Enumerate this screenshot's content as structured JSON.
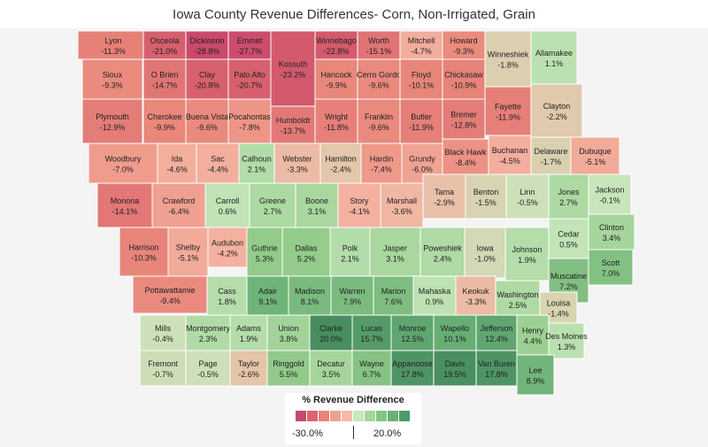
{
  "title": "Iowa County Revenue Differences- Corn, Non-Irrigated, Grain",
  "legend": {
    "title": "% Revenue Difference",
    "min_label": "-30.0%",
    "max_label": "20.0%",
    "swatch_colors": [
      "#c8496b",
      "#d8656f",
      "#e6847a",
      "#f0a08e",
      "#f5bba7",
      "#c9e6bd",
      "#a5d69a",
      "#84c582",
      "#68b176",
      "#4c9a67"
    ]
  },
  "counties": [
    {
      "name": "Lyon",
      "value": "-11.3%"
    },
    {
      "name": "Osceola",
      "value": "-21.0%"
    },
    {
      "name": "Dickinson",
      "value": "-28.8%"
    },
    {
      "name": "Emmet",
      "value": "-27.7%"
    },
    {
      "name": "Kossuth",
      "value": "-23.2%"
    },
    {
      "name": "Winnebago",
      "value": "-22.8%"
    },
    {
      "name": "Worth",
      "value": "-15.1%"
    },
    {
      "name": "Mitchell",
      "value": "-4.7%"
    },
    {
      "name": "Howard",
      "value": "-9.3%"
    },
    {
      "name": "Winneshiek",
      "value": "-1.8%"
    },
    {
      "name": "Allamakee",
      "value": "1.1%"
    },
    {
      "name": "Sioux",
      "value": "-9.3%"
    },
    {
      "name": "O Brien",
      "value": "-14.7%"
    },
    {
      "name": "Clay",
      "value": "-20.8%"
    },
    {
      "name": "Palo Alto",
      "value": "-20.7%"
    },
    {
      "name": "Hancock",
      "value": "-9.9%"
    },
    {
      "name": "Cerro Gordo",
      "value": "-9.6%"
    },
    {
      "name": "Floyd",
      "value": "-10.1%"
    },
    {
      "name": "Chickasaw",
      "value": "-10.9%"
    },
    {
      "name": "Fayette",
      "value": "-11.9%"
    },
    {
      "name": "Clayton",
      "value": "-2.2%"
    },
    {
      "name": "Plymouth",
      "value": "-12.9%"
    },
    {
      "name": "Cherokee",
      "value": "-9.9%"
    },
    {
      "name": "Buena Vista",
      "value": "-9.6%"
    },
    {
      "name": "Pocahontas",
      "value": "-7.8%"
    },
    {
      "name": "Humboldt",
      "value": "-13.7%"
    },
    {
      "name": "Wright",
      "value": "-11.8%"
    },
    {
      "name": "Franklin",
      "value": "-9.6%"
    },
    {
      "name": "Butler",
      "value": "-11.9%"
    },
    {
      "name": "Bremer",
      "value": "-12.8%"
    },
    {
      "name": "Black Hawk",
      "value": "-8.4%"
    },
    {
      "name": "Buchanan",
      "value": "-4.5%"
    },
    {
      "name": "Delaware",
      "value": "-1.7%"
    },
    {
      "name": "Dubuque",
      "value": "-5.1%"
    },
    {
      "name": "Woodbury",
      "value": "-7.0%"
    },
    {
      "name": "Ida",
      "value": "-4.6%"
    },
    {
      "name": "Sac",
      "value": "-4.4%"
    },
    {
      "name": "Calhoun",
      "value": "2.1%"
    },
    {
      "name": "Webster",
      "value": "-3.3%"
    },
    {
      "name": "Hamilton",
      "value": "-2.4%"
    },
    {
      "name": "Hardin",
      "value": "-7.4%"
    },
    {
      "name": "Grundy",
      "value": "-6.0%"
    },
    {
      "name": "Tama",
      "value": "-2.9%"
    },
    {
      "name": "Benton",
      "value": "-1.5%"
    },
    {
      "name": "Linn",
      "value": "-0.5%"
    },
    {
      "name": "Jones",
      "value": "2.7%"
    },
    {
      "name": "Jackson",
      "value": "-0.1%"
    },
    {
      "name": "Monona",
      "value": "-14.1%"
    },
    {
      "name": "Crawford",
      "value": "-6.4%"
    },
    {
      "name": "Carroll",
      "value": "0.6%"
    },
    {
      "name": "Greene",
      "value": "2.7%"
    },
    {
      "name": "Boone",
      "value": "3.1%"
    },
    {
      "name": "Story",
      "value": "-4.1%"
    },
    {
      "name": "Marshall",
      "value": "-3.6%"
    },
    {
      "name": "Clinton",
      "value": "3.4%"
    },
    {
      "name": "Cedar",
      "value": "0.5%"
    },
    {
      "name": "Harrison",
      "value": "-10.3%"
    },
    {
      "name": "Shelby",
      "value": "-5.1%"
    },
    {
      "name": "Audubon",
      "value": "-4.2%"
    },
    {
      "name": "Guthrie",
      "value": "5.3%"
    },
    {
      "name": "Dallas",
      "value": "5.2%"
    },
    {
      "name": "Polk",
      "value": "2.1%"
    },
    {
      "name": "Jasper",
      "value": "3.1%"
    },
    {
      "name": "Poweshiek",
      "value": "2.4%"
    },
    {
      "name": "Iowa",
      "value": "-1.0%"
    },
    {
      "name": "Johnson",
      "value": "1.9%"
    },
    {
      "name": "Scott",
      "value": "7.0%"
    },
    {
      "name": "Muscatine",
      "value": "7.2%"
    },
    {
      "name": "Pottawattamie",
      "value": "-9.4%"
    },
    {
      "name": "Cass",
      "value": "1.8%"
    },
    {
      "name": "Adair",
      "value": "9.1%"
    },
    {
      "name": "Madison",
      "value": "8.1%"
    },
    {
      "name": "Warren",
      "value": "7.9%"
    },
    {
      "name": "Marion",
      "value": "7.6%"
    },
    {
      "name": "Mahaska",
      "value": "0.9%"
    },
    {
      "name": "Keokuk",
      "value": "-3.3%"
    },
    {
      "name": "Washington",
      "value": "2.5%"
    },
    {
      "name": "Louisa",
      "value": "-1.4%"
    },
    {
      "name": "Mills",
      "value": "-0.4%"
    },
    {
      "name": "Montgomery",
      "value": "2.3%"
    },
    {
      "name": "Adams",
      "value": "1.9%"
    },
    {
      "name": "Union",
      "value": "3.8%"
    },
    {
      "name": "Clarke",
      "value": "20.0%"
    },
    {
      "name": "Lucas",
      "value": "15.7%"
    },
    {
      "name": "Monroe",
      "value": "12.5%"
    },
    {
      "name": "Wapello",
      "value": "10.1%"
    },
    {
      "name": "Jefferson",
      "value": "12.4%"
    },
    {
      "name": "Henry",
      "value": "4.4%"
    },
    {
      "name": "Des Moines",
      "value": "1.3%"
    },
    {
      "name": "Fremont",
      "value": "-0.7%"
    },
    {
      "name": "Page",
      "value": "-0.5%"
    },
    {
      "name": "Taylor",
      "value": "-2.6%"
    },
    {
      "name": "Ringgold",
      "value": "5.5%"
    },
    {
      "name": "Decatur",
      "value": "3.5%"
    },
    {
      "name": "Wayne",
      "value": "6.7%"
    },
    {
      "name": "Appanoose",
      "value": "17.8%"
    },
    {
      "name": "Davis",
      "value": "19.5%"
    },
    {
      "name": "Van Buren",
      "value": "17.8%"
    },
    {
      "name": "Lee",
      "value": "8.9%"
    }
  ]
}
